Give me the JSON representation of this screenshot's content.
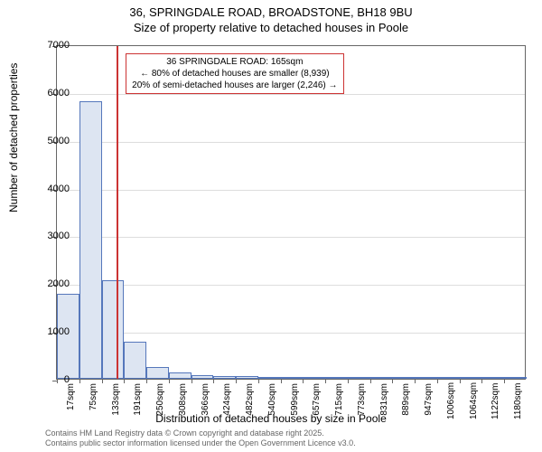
{
  "title": {
    "line1": "36, SPRINGDALE ROAD, BROADSTONE, BH18 9BU",
    "line2": "Size of property relative to detached houses in Poole"
  },
  "histogram": {
    "type": "histogram",
    "background_color": "#ffffff",
    "bar_fill": "#dde5f2",
    "bar_stroke": "#5577bb",
    "grid_color": "#dddddd",
    "axis_color": "#666666",
    "ylim": [
      0,
      7000
    ],
    "ytick_step": 1000,
    "yticks": [
      0,
      1000,
      2000,
      3000,
      4000,
      5000,
      6000,
      7000
    ],
    "xticks": [
      "17sqm",
      "75sqm",
      "133sqm",
      "191sqm",
      "250sqm",
      "308sqm",
      "366sqm",
      "424sqm",
      "482sqm",
      "540sqm",
      "599sqm",
      "657sqm",
      "715sqm",
      "773sqm",
      "831sqm",
      "889sqm",
      "947sqm",
      "1006sqm",
      "1064sqm",
      "1122sqm",
      "1180sqm"
    ],
    "values": [
      1780,
      5800,
      2060,
      780,
      250,
      130,
      80,
      60,
      50,
      40,
      30,
      20,
      15,
      10,
      8,
      6,
      5,
      3,
      2,
      1,
      1
    ],
    "marker_value": 165,
    "marker_color": "#cc3333",
    "xmin": 17,
    "xmax": 1180
  },
  "annotation": {
    "line1": "36 SPRINGDALE ROAD: 165sqm",
    "line2": "← 80% of detached houses are smaller (8,939)",
    "line3": "20% of semi-detached houses are larger (2,246) →",
    "border_color": "#cc3333"
  },
  "axes": {
    "ylabel": "Number of detached properties",
    "xlabel": "Distribution of detached houses by size in Poole",
    "label_fontsize": 12,
    "tick_fontsize": 10
  },
  "footer": {
    "line1": "Contains HM Land Registry data © Crown copyright and database right 2025.",
    "line2": "Contains public sector information licensed under the Open Government Licence v3.0."
  }
}
